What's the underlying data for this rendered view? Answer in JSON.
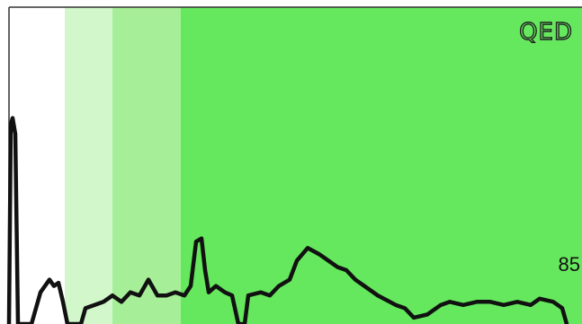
{
  "chart_data": {
    "type": "line",
    "xlim": [
      0,
      647
    ],
    "ylim": [
      0,
      100
    ],
    "x": [
      10,
      12,
      14,
      17,
      20,
      35,
      45,
      55,
      60,
      65,
      70,
      75,
      90,
      95,
      105,
      115,
      125,
      135,
      145,
      155,
      165,
      175,
      185,
      195,
      205,
      212,
      218,
      224,
      228,
      232,
      240,
      250,
      258,
      265,
      272,
      276,
      290,
      300,
      310,
      322,
      330,
      342,
      355,
      365,
      375,
      385,
      395,
      405,
      420,
      440,
      450,
      460,
      475,
      490,
      500,
      515,
      530,
      545,
      560,
      575,
      590,
      600,
      615,
      625,
      630
    ],
    "series": [
      {
        "color": "#111111",
        "values": [
          0,
          63,
          65,
          60,
          0,
          0,
          10,
          14,
          12,
          13,
          7,
          0,
          0,
          5,
          6,
          7,
          9,
          7,
          10,
          9,
          14,
          9,
          9,
          10,
          9,
          12,
          26,
          27,
          17,
          10,
          12,
          10,
          9,
          0,
          0,
          9,
          10,
          9,
          12,
          14,
          20,
          24,
          22,
          20,
          18,
          17,
          14,
          12,
          9,
          6,
          5,
          2,
          3,
          6,
          7,
          6,
          7,
          7,
          6,
          7,
          6,
          8,
          7,
          5,
          0
        ]
      }
    ],
    "bands": [
      {
        "x0": 72,
        "x1": 125,
        "color": "#d2f7cb"
      },
      {
        "x0": 125,
        "x1": 201,
        "color": "#a6ef98"
      },
      {
        "x0": 201,
        "x1": 647,
        "color": "#66e85e"
      }
    ],
    "annotations": [
      "QED",
      "85"
    ]
  }
}
